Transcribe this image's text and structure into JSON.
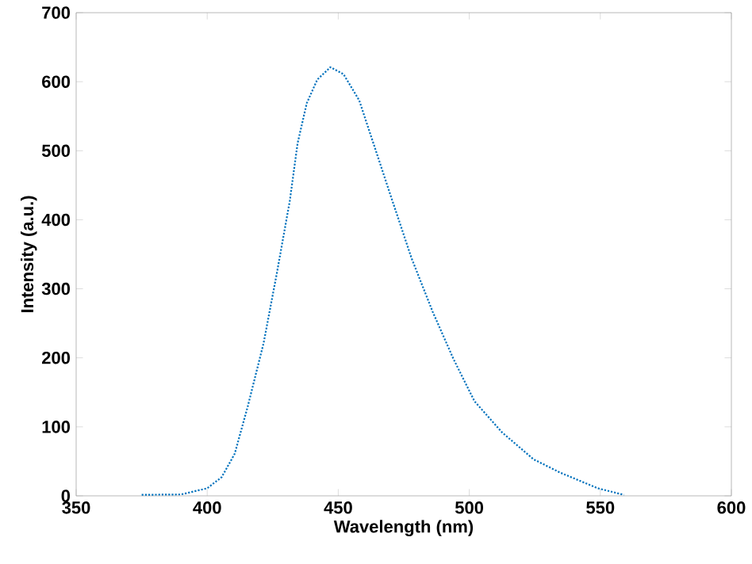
{
  "chart_data": {
    "type": "line",
    "xlabel": "Wavelength (nm)",
    "ylabel": "Intensity (a.u.)",
    "xlim": [
      350,
      600
    ],
    "ylim": [
      0,
      700
    ],
    "xticks": [
      350,
      400,
      450,
      500,
      550,
      600
    ],
    "yticks": [
      0,
      100,
      200,
      300,
      400,
      500,
      600,
      700
    ],
    "line_style": "dotted",
    "marker": "none",
    "x": [
      375,
      390,
      400,
      405.5,
      410.5,
      415.5,
      421.5,
      426.5,
      431.5,
      434.5,
      438,
      442,
      447,
      452,
      458,
      464,
      470,
      478,
      486,
      494,
      502,
      512.5,
      524.5,
      534.5,
      549,
      559
    ],
    "series": [
      {
        "color": "#0072bd",
        "values": [
          1.5,
          2,
          11,
          27,
          61,
          130,
          221,
          321,
          427,
          511,
          569,
          603,
          621,
          611,
          573,
          504,
          435,
          344,
          267,
          198,
          137,
          92,
          53,
          34,
          11,
          1.5
        ]
      }
    ]
  }
}
